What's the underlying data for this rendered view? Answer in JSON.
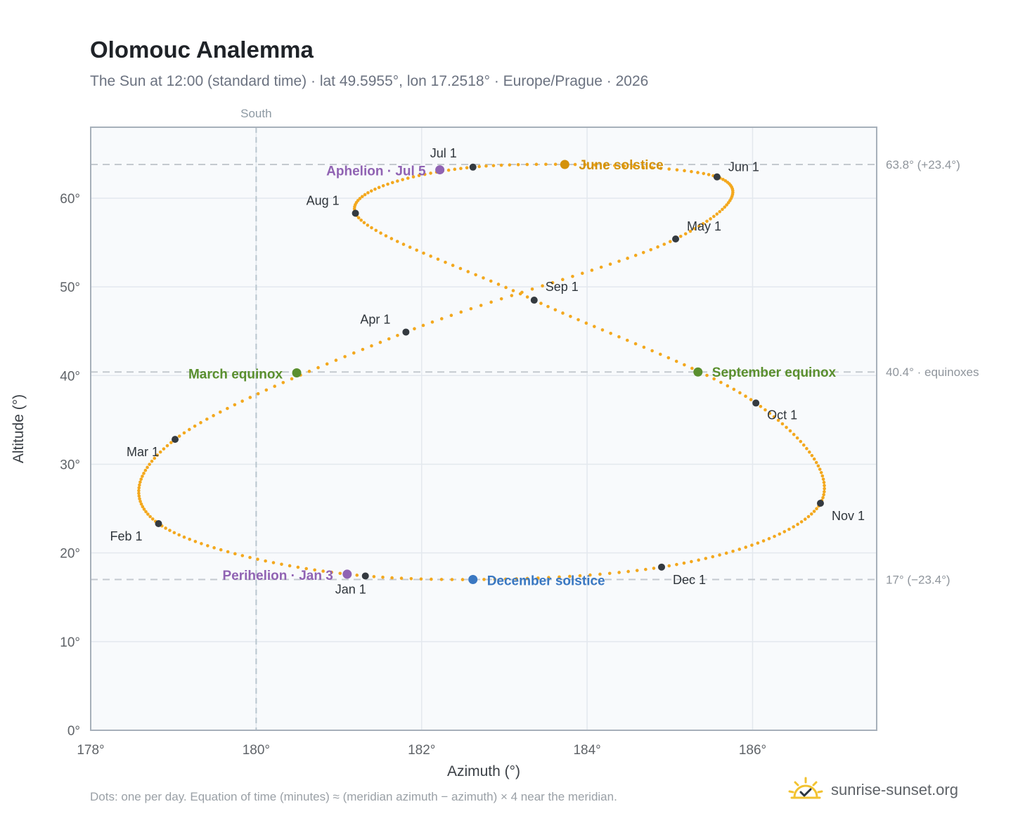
{
  "title": "Olomouc Analemma",
  "subtitle": "The Sun at 12:00 (standard time) · lat 49.5955°, lon 17.2518° · Europe/Prague · 2026",
  "footnote": "Dots: one per day. Equation of time (minutes) ≈ (meridian azimuth − azimuth) × 4 near the meridian.",
  "brand": {
    "name": "sunrise-sunset.org",
    "logo_icon": "sun-check-icon",
    "color": "#f2c230"
  },
  "colors": {
    "path": "#f3a81e",
    "month_marker": "#343a40",
    "solstice_june": "#d4920a",
    "solstice_december": "#3a78c2",
    "equinox": "#5a8f2e",
    "apsis": "#9063b3",
    "plot_bg": "#f8fafc",
    "grid": "#e3e8ee",
    "reference_line": "#c4c9cf"
  },
  "chart_data": {
    "type": "scatter",
    "xlabel": "Azimuth (°)",
    "ylabel": "Altitude (°)",
    "xlim": [
      178,
      187.5
    ],
    "ylim": [
      0,
      68
    ],
    "x_ticks": [
      178,
      180,
      182,
      184,
      186
    ],
    "x_tick_labels": [
      "178°",
      "180°",
      "182°",
      "184°",
      "186°"
    ],
    "y_ticks": [
      0,
      10,
      20,
      30,
      40,
      50,
      60
    ],
    "y_tick_labels": [
      "0°",
      "10°",
      "20°",
      "30°",
      "40°",
      "50°",
      "60°"
    ],
    "grid": true,
    "meridian": {
      "azimuth": 180,
      "label": "South"
    },
    "reference_lines": [
      {
        "altitude": 63.8,
        "label": "63.8° (+23.4°)"
      },
      {
        "altitude": 40.4,
        "label": "40.4° · equinoxes"
      },
      {
        "altitude": 17.0,
        "label": "17° (−23.4°)"
      }
    ],
    "daily_path_note": "one dot per day",
    "month_markers": [
      {
        "label": "Jan 1",
        "azimuth": 181.32,
        "altitude": 17.4
      },
      {
        "label": "Feb 1",
        "azimuth": 178.82,
        "altitude": 23.3
      },
      {
        "label": "Mar 1",
        "azimuth": 179.02,
        "altitude": 32.8
      },
      {
        "label": "Apr 1",
        "azimuth": 181.81,
        "altitude": 44.9
      },
      {
        "label": "May 1",
        "azimuth": 185.07,
        "altitude": 55.4
      },
      {
        "label": "Jun 1",
        "azimuth": 185.57,
        "altitude": 62.4
      },
      {
        "label": "Jul 1",
        "azimuth": 182.62,
        "altitude": 63.5
      },
      {
        "label": "Aug 1",
        "azimuth": 181.2,
        "altitude": 58.3
      },
      {
        "label": "Sep 1",
        "azimuth": 183.36,
        "altitude": 48.5
      },
      {
        "label": "Oct 1",
        "azimuth": 186.04,
        "altitude": 36.9
      },
      {
        "label": "Nov 1",
        "azimuth": 186.82,
        "altitude": 25.6
      },
      {
        "label": "Dec 1",
        "azimuth": 184.9,
        "altitude": 18.4
      }
    ],
    "events": [
      {
        "label": "June solstice",
        "kind": "solstice_june",
        "azimuth": 183.73,
        "altitude": 63.8
      },
      {
        "label": "December solstice",
        "kind": "solstice_december",
        "azimuth": 182.62,
        "altitude": 17.0
      },
      {
        "label": "March equinox",
        "kind": "equinox",
        "azimuth": 180.49,
        "altitude": 40.3
      },
      {
        "label": "September equinox",
        "kind": "equinox",
        "azimuth": 185.34,
        "altitude": 40.4
      },
      {
        "label": "Aphelion · Jul 5",
        "kind": "apsis",
        "azimuth": 182.22,
        "altitude": 63.2
      },
      {
        "label": "Perihelion · Jan 3",
        "kind": "apsis",
        "azimuth": 181.1,
        "altitude": 17.6
      }
    ]
  }
}
